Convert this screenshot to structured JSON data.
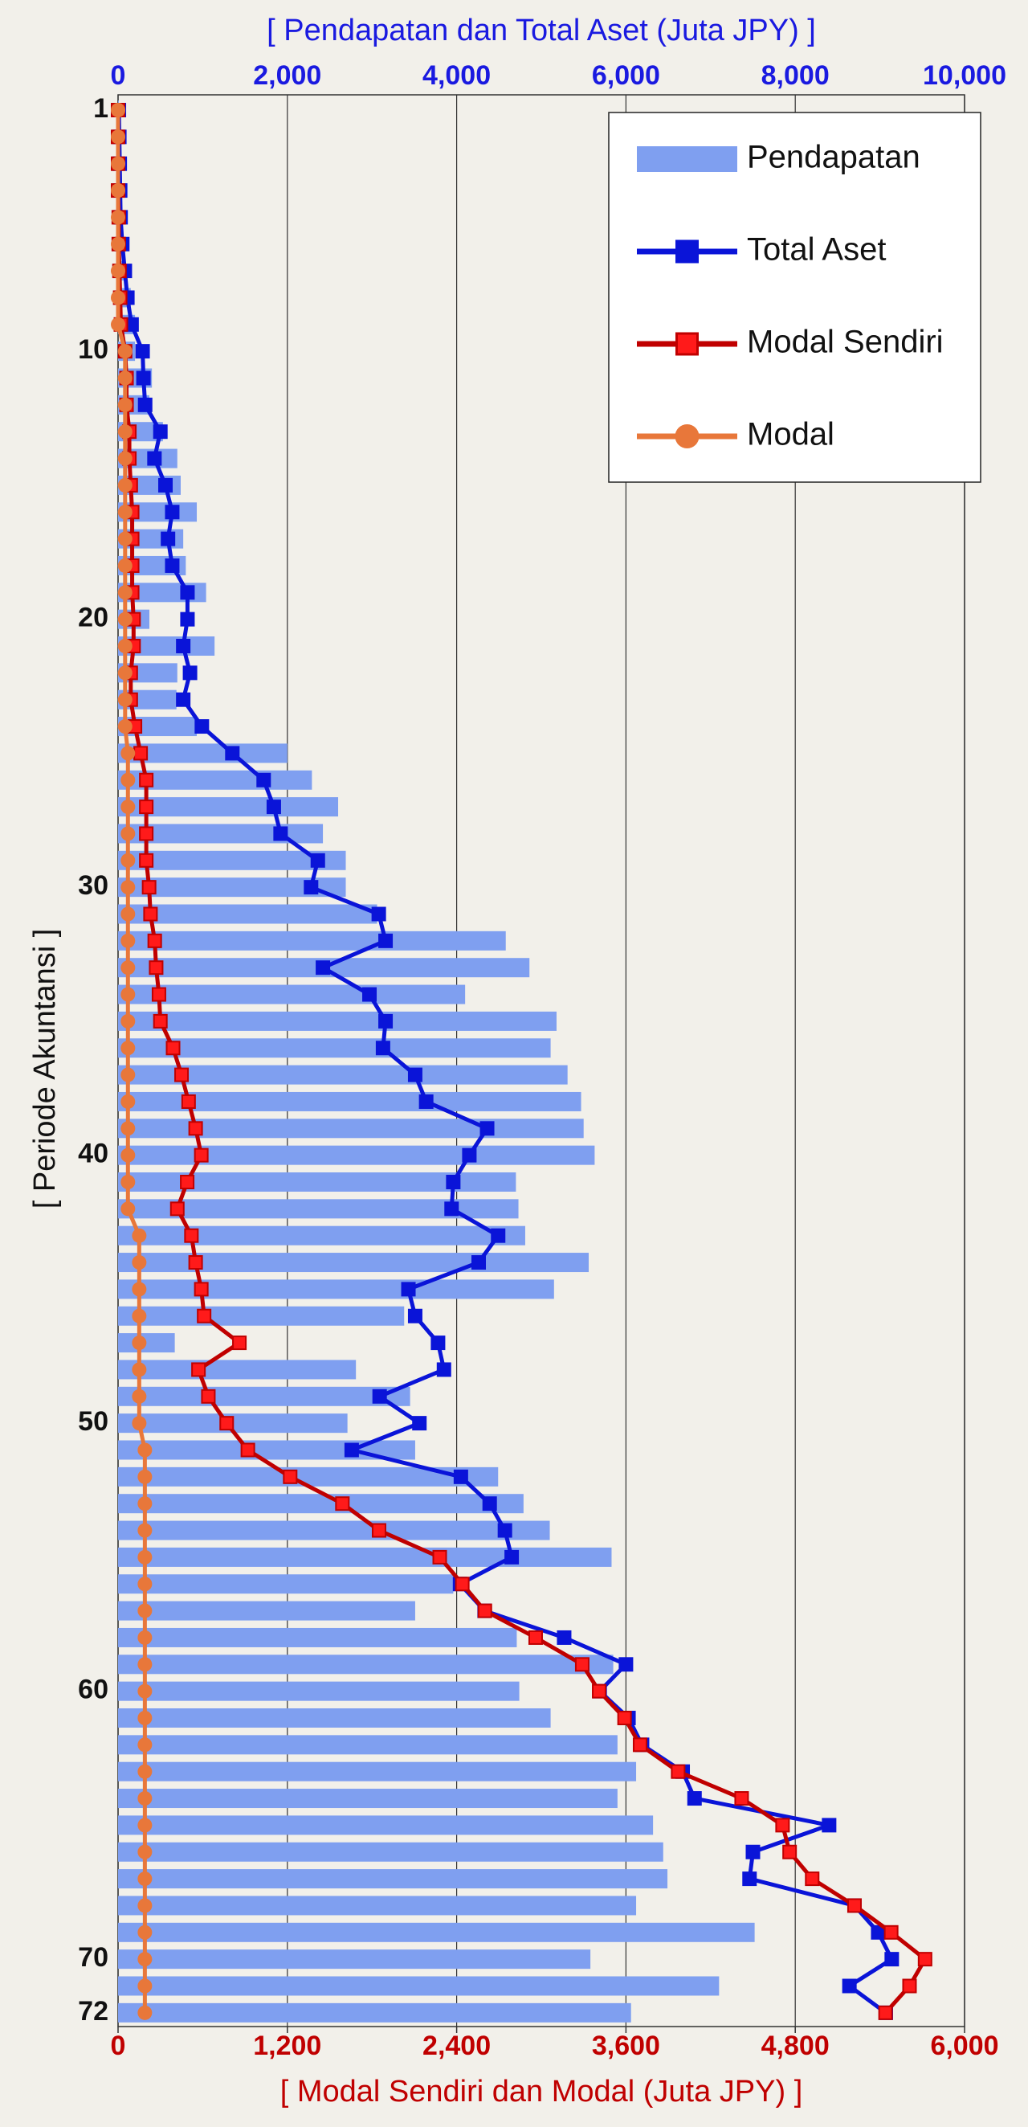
{
  "chart_data": {
    "type": "bar",
    "orientation": "horizontal",
    "title": "[ Pendapatan dan Total Aset (Juta JPY) ]",
    "x2_label": "[ Modal Sendiri dan Modal (Juta JPY) ]",
    "y_label": "[ Periode Akuntansi ]",
    "categories": [
      "1",
      null,
      null,
      null,
      null,
      null,
      null,
      null,
      null,
      "10",
      null,
      null,
      null,
      null,
      null,
      null,
      null,
      null,
      null,
      "20",
      null,
      null,
      null,
      null,
      null,
      null,
      null,
      null,
      null,
      "30",
      null,
      null,
      null,
      null,
      null,
      null,
      null,
      null,
      null,
      "40",
      null,
      null,
      null,
      null,
      null,
      null,
      null,
      null,
      null,
      "50",
      null,
      null,
      null,
      null,
      null,
      null,
      null,
      null,
      null,
      "60",
      null,
      null,
      null,
      null,
      null,
      null,
      null,
      null,
      null,
      "70",
      null,
      "72"
    ],
    "xlim": [
      0,
      10000
    ],
    "xticks": [
      0,
      {
        "value": 2000,
        "label": "2,000"
      },
      {
        "value": 4000,
        "label": "4,000"
      },
      {
        "value": 6000,
        "label": "6,000"
      },
      {
        "value": 8000,
        "label": "8,000"
      },
      {
        "value": 10000,
        "label": "10,000"
      }
    ],
    "x2lim": [
      0,
      6000
    ],
    "x2ticks": [
      0,
      {
        "value": 1200,
        "label": "1,200"
      },
      {
        "value": 2400,
        "label": "2,400"
      },
      {
        "value": 3600,
        "label": "3,600"
      },
      {
        "value": 4800,
        "label": "4,800"
      },
      {
        "value": 6000,
        "label": "6,000"
      }
    ],
    "grid": true,
    "legend": "top-right",
    "series": [
      {
        "name": "Pendapatan",
        "type": "bar",
        "axis": "x",
        "color": "#7f9ff0",
        "values": [
          10,
          20,
          30,
          40,
          50,
          60,
          80,
          150,
          200,
          200,
          400,
          370,
          530,
          700,
          740,
          930,
          770,
          800,
          1040,
          370,
          1140,
          700,
          690,
          930,
          2000,
          2290,
          2600,
          2420,
          2690,
          2690,
          3060,
          4580,
          4860,
          4100,
          5180,
          5110,
          5310,
          5470,
          5500,
          5630,
          4700,
          4730,
          4810,
          5560,
          5150,
          3380,
          670,
          2810,
          3450,
          2710,
          3510,
          4490,
          4790,
          5100,
          5830,
          3960,
          3510,
          4710,
          5850,
          4740,
          5110,
          5900,
          6120,
          5900,
          6320,
          6440,
          6490,
          6120,
          7520,
          5580,
          7100,
          6060
        ]
      },
      {
        "name": "Total Aset",
        "type": "line",
        "marker": "square",
        "axis": "x",
        "color": "#0a14d8",
        "marker_color": "#0a14d8",
        "values": [
          10,
          15,
          20,
          25,
          30,
          50,
          80,
          110,
          160,
          290,
          300,
          320,
          500,
          430,
          560,
          640,
          590,
          640,
          820,
          820,
          770,
          850,
          770,
          990,
          1350,
          1720,
          1840,
          1920,
          2360,
          2280,
          3080,
          3160,
          2420,
          2970,
          3160,
          3130,
          3510,
          3640,
          4360,
          4150,
          3960,
          3940,
          4490,
          4260,
          3430,
          3510,
          3780,
          3850,
          3090,
          3560,
          2760,
          4050,
          4390,
          4570,
          4650,
          4040,
          4330,
          5270,
          6000,
          5690,
          6030,
          6190,
          6670,
          6810,
          8400,
          7500,
          7460,
          8700,
          8980,
          9140,
          8640,
          9070
        ]
      },
      {
        "name": "Modal Sendiri",
        "type": "line",
        "marker": "square",
        "axis": "x2",
        "color": "#c00000",
        "marker_color": "#ff1a1a",
        "values": [
          0,
          0,
          0,
          0,
          5,
          5,
          10,
          15,
          20,
          50,
          60,
          60,
          80,
          80,
          90,
          100,
          100,
          100,
          100,
          110,
          110,
          90,
          90,
          120,
          160,
          200,
          200,
          200,
          200,
          220,
          230,
          260,
          270,
          290,
          300,
          390,
          450,
          500,
          550,
          590,
          490,
          420,
          520,
          550,
          590,
          610,
          860,
          570,
          640,
          770,
          920,
          1220,
          1590,
          1850,
          2280,
          2440,
          2600,
          2960,
          3290,
          3410,
          3590,
          3700,
          3970,
          4420,
          4710,
          4760,
          4920,
          5220,
          5480,
          5720,
          5610,
          5440
        ]
      },
      {
        "name": "Modal",
        "type": "line",
        "marker": "circle",
        "axis": "x2",
        "color": "#e8773a",
        "marker_color": "#e8773a",
        "values": [
          0,
          0,
          0,
          0,
          0,
          0,
          0,
          0,
          0,
          50,
          50,
          50,
          50,
          50,
          50,
          50,
          50,
          50,
          50,
          50,
          50,
          50,
          50,
          50,
          70,
          70,
          70,
          70,
          70,
          70,
          70,
          70,
          70,
          70,
          70,
          70,
          70,
          70,
          70,
          70,
          70,
          70,
          150,
          150,
          150,
          150,
          150,
          150,
          150,
          150,
          190,
          190,
          190,
          190,
          190,
          190,
          190,
          190,
          190,
          190,
          190,
          190,
          190,
          190,
          190,
          190,
          190,
          190,
          190,
          190,
          190,
          190
        ]
      }
    ]
  }
}
